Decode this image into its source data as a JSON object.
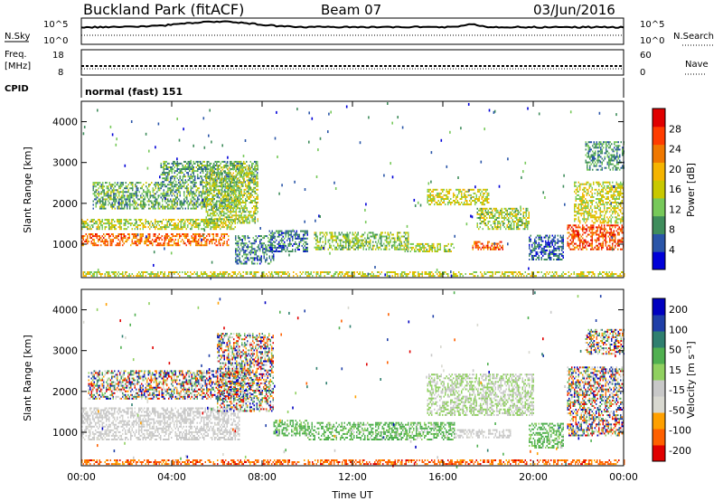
{
  "header": {
    "title": "Buckland Park (fitACF)",
    "beam": "Beam 07",
    "date": "03/Jun/2016"
  },
  "strips": {
    "nsky_label": "N.Sky",
    "nsky_ticks": [
      "10^5",
      "10^0"
    ],
    "nsearch_label": "N.Search",
    "nsearch_ticks": [
      "10^5",
      "10^0"
    ],
    "freq_label": "Freq.",
    "freq_unit": "[MHz]",
    "freq_ticks": [
      "18",
      "8"
    ],
    "nave_label": "Nave",
    "nave_ticks": [
      "60",
      "0"
    ],
    "cpid_label": "CPID",
    "cpid_text": "normal (fast) 151"
  },
  "colors": {
    "power_scale": [
      "#0000d8",
      "#2a55a8",
      "#3f8d5c",
      "#77c95a",
      "#c8c800",
      "#f5b400",
      "#f07800",
      "#ff3c00",
      "#e00000"
    ],
    "velocity_scale": [
      "#e00000",
      "#ff6000",
      "#ffa000",
      "#d8d8d0",
      "#c8c8c8",
      "#90d060",
      "#50b050",
      "#2f7f6f",
      "#1f3fa8",
      "#0000c0"
    ]
  },
  "chart_data": [
    {
      "type": "heatmap",
      "title": "",
      "quantity": "Power",
      "xlabel": "",
      "ylabel": "Slant Range [km]",
      "x_range_hours": [
        0,
        24
      ],
      "x_ticks": [
        "00:00",
        "04:00",
        "08:00",
        "12:00",
        "16:00",
        "20:00",
        "00:00"
      ],
      "ylim": [
        180,
        4500
      ],
      "y_ticks": [
        1000,
        2000,
        3000,
        4000
      ],
      "colorbar_label": "Power [dB]",
      "colorbar_ticks": [
        4,
        8,
        12,
        16,
        20,
        24,
        28
      ],
      "colorbar_range": [
        0,
        32
      ],
      "regions": [
        {
          "t0": 0.0,
          "t1": 6.5,
          "r0": 950,
          "r1": 1250,
          "v": 24
        },
        {
          "t0": 0.0,
          "t1": 6.8,
          "r0": 1350,
          "r1": 1600,
          "v": 15
        },
        {
          "t0": 0.5,
          "t1": 7.0,
          "r0": 1850,
          "r1": 2500,
          "v": 11
        },
        {
          "t0": 3.5,
          "t1": 7.8,
          "r0": 2500,
          "r1": 3000,
          "v": 10
        },
        {
          "t0": 5.5,
          "t1": 7.8,
          "r0": 1500,
          "r1": 2900,
          "v": 14
        },
        {
          "t0": 6.8,
          "t1": 8.5,
          "r0": 500,
          "r1": 1200,
          "v": 8
        },
        {
          "t0": 8.3,
          "t1": 10.0,
          "r0": 800,
          "r1": 1300,
          "v": 7
        },
        {
          "t0": 10.3,
          "t1": 14.5,
          "r0": 850,
          "r1": 1300,
          "v": 13
        },
        {
          "t0": 14.3,
          "t1": 16.5,
          "r0": 800,
          "r1": 1000,
          "v": 15
        },
        {
          "t0": 17.3,
          "t1": 18.7,
          "r0": 850,
          "r1": 1050,
          "v": 25
        },
        {
          "t0": 15.3,
          "t1": 18.0,
          "r0": 1950,
          "r1": 2350,
          "v": 16
        },
        {
          "t0": 17.5,
          "t1": 19.8,
          "r0": 1350,
          "r1": 1850,
          "v": 14
        },
        {
          "t0": 19.8,
          "t1": 21.3,
          "r0": 600,
          "r1": 1200,
          "v": 6
        },
        {
          "t0": 21.5,
          "t1": 24.0,
          "r0": 850,
          "r1": 1450,
          "v": 26
        },
        {
          "t0": 21.8,
          "t1": 24.0,
          "r0": 1500,
          "r1": 2500,
          "v": 16
        },
        {
          "t0": 22.3,
          "t1": 24.0,
          "r0": 2800,
          "r1": 3500,
          "v": 9
        },
        {
          "t0": 0.0,
          "t1": 24.0,
          "r0": 200,
          "r1": 330,
          "v": 16
        }
      ]
    },
    {
      "type": "heatmap",
      "title": "",
      "quantity": "Velocity",
      "xlabel": "Time UT",
      "ylabel": "Slant Range [km]",
      "x_range_hours": [
        0,
        24
      ],
      "x_ticks": [
        "00:00",
        "04:00",
        "08:00",
        "12:00",
        "16:00",
        "20:00",
        "00:00"
      ],
      "ylim": [
        180,
        4500
      ],
      "y_ticks": [
        1000,
        2000,
        3000,
        4000
      ],
      "colorbar_label": "Velocity [m s⁻¹]",
      "colorbar_ticks": [
        "200",
        "100",
        "50",
        "15",
        "-15",
        "-50",
        "-100",
        "-200"
      ],
      "regions": [
        {
          "t0": 0.0,
          "t1": 7.0,
          "r0": 800,
          "r1": 1600,
          "v": "low"
        },
        {
          "t0": 0.3,
          "t1": 7.5,
          "r0": 1800,
          "r1": 2500,
          "v": "mixed"
        },
        {
          "t0": 6.0,
          "t1": 8.5,
          "r0": 1500,
          "r1": 3400,
          "v": "mixed"
        },
        {
          "t0": 8.5,
          "t1": 10.0,
          "r0": 900,
          "r1": 1300,
          "v": "pos"
        },
        {
          "t0": 10.0,
          "t1": 16.5,
          "r0": 800,
          "r1": 1250,
          "v": "pos"
        },
        {
          "t0": 15.3,
          "t1": 20.0,
          "r0": 1400,
          "r1": 2400,
          "v": "lowpos"
        },
        {
          "t0": 16.5,
          "t1": 19.0,
          "r0": 850,
          "r1": 1050,
          "v": "low"
        },
        {
          "t0": 19.8,
          "t1": 21.3,
          "r0": 600,
          "r1": 1200,
          "v": "pos"
        },
        {
          "t0": 21.5,
          "t1": 24.0,
          "r0": 900,
          "r1": 2600,
          "v": "mixed"
        },
        {
          "t0": 22.3,
          "t1": 24.0,
          "r0": 2900,
          "r1": 3500,
          "v": "mixed"
        },
        {
          "t0": 0.0,
          "t1": 24.0,
          "r0": 200,
          "r1": 330,
          "v": "neg"
        }
      ]
    }
  ]
}
